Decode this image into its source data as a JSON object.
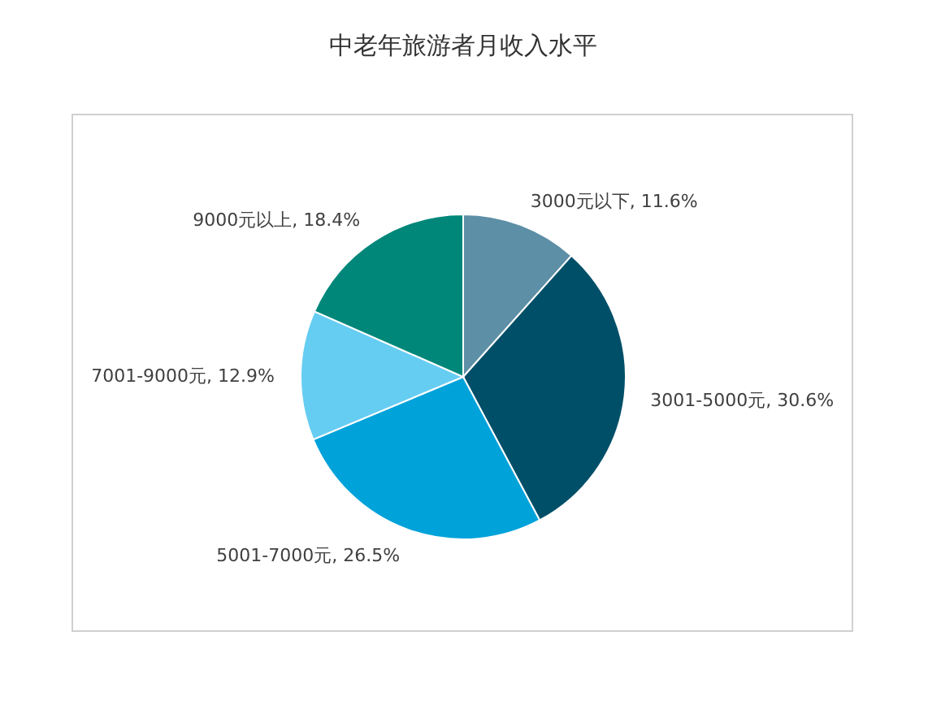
{
  "chart_data": {
    "type": "pie",
    "title": "中老年旅游者月收入水平",
    "categories": [
      "3000元以下",
      "3001-5000元",
      "5001-7000元",
      "7001-9000元",
      "9000元以上"
    ],
    "values": [
      11.6,
      30.6,
      26.5,
      12.9,
      18.4
    ],
    "colors": [
      "#5d8fa6",
      "#004f69",
      "#00a2da",
      "#66cdf2",
      "#00877a"
    ],
    "value_labels": [
      "11.6%",
      "30.6%",
      "26.5%",
      "12.9%",
      "18.4%"
    ]
  }
}
